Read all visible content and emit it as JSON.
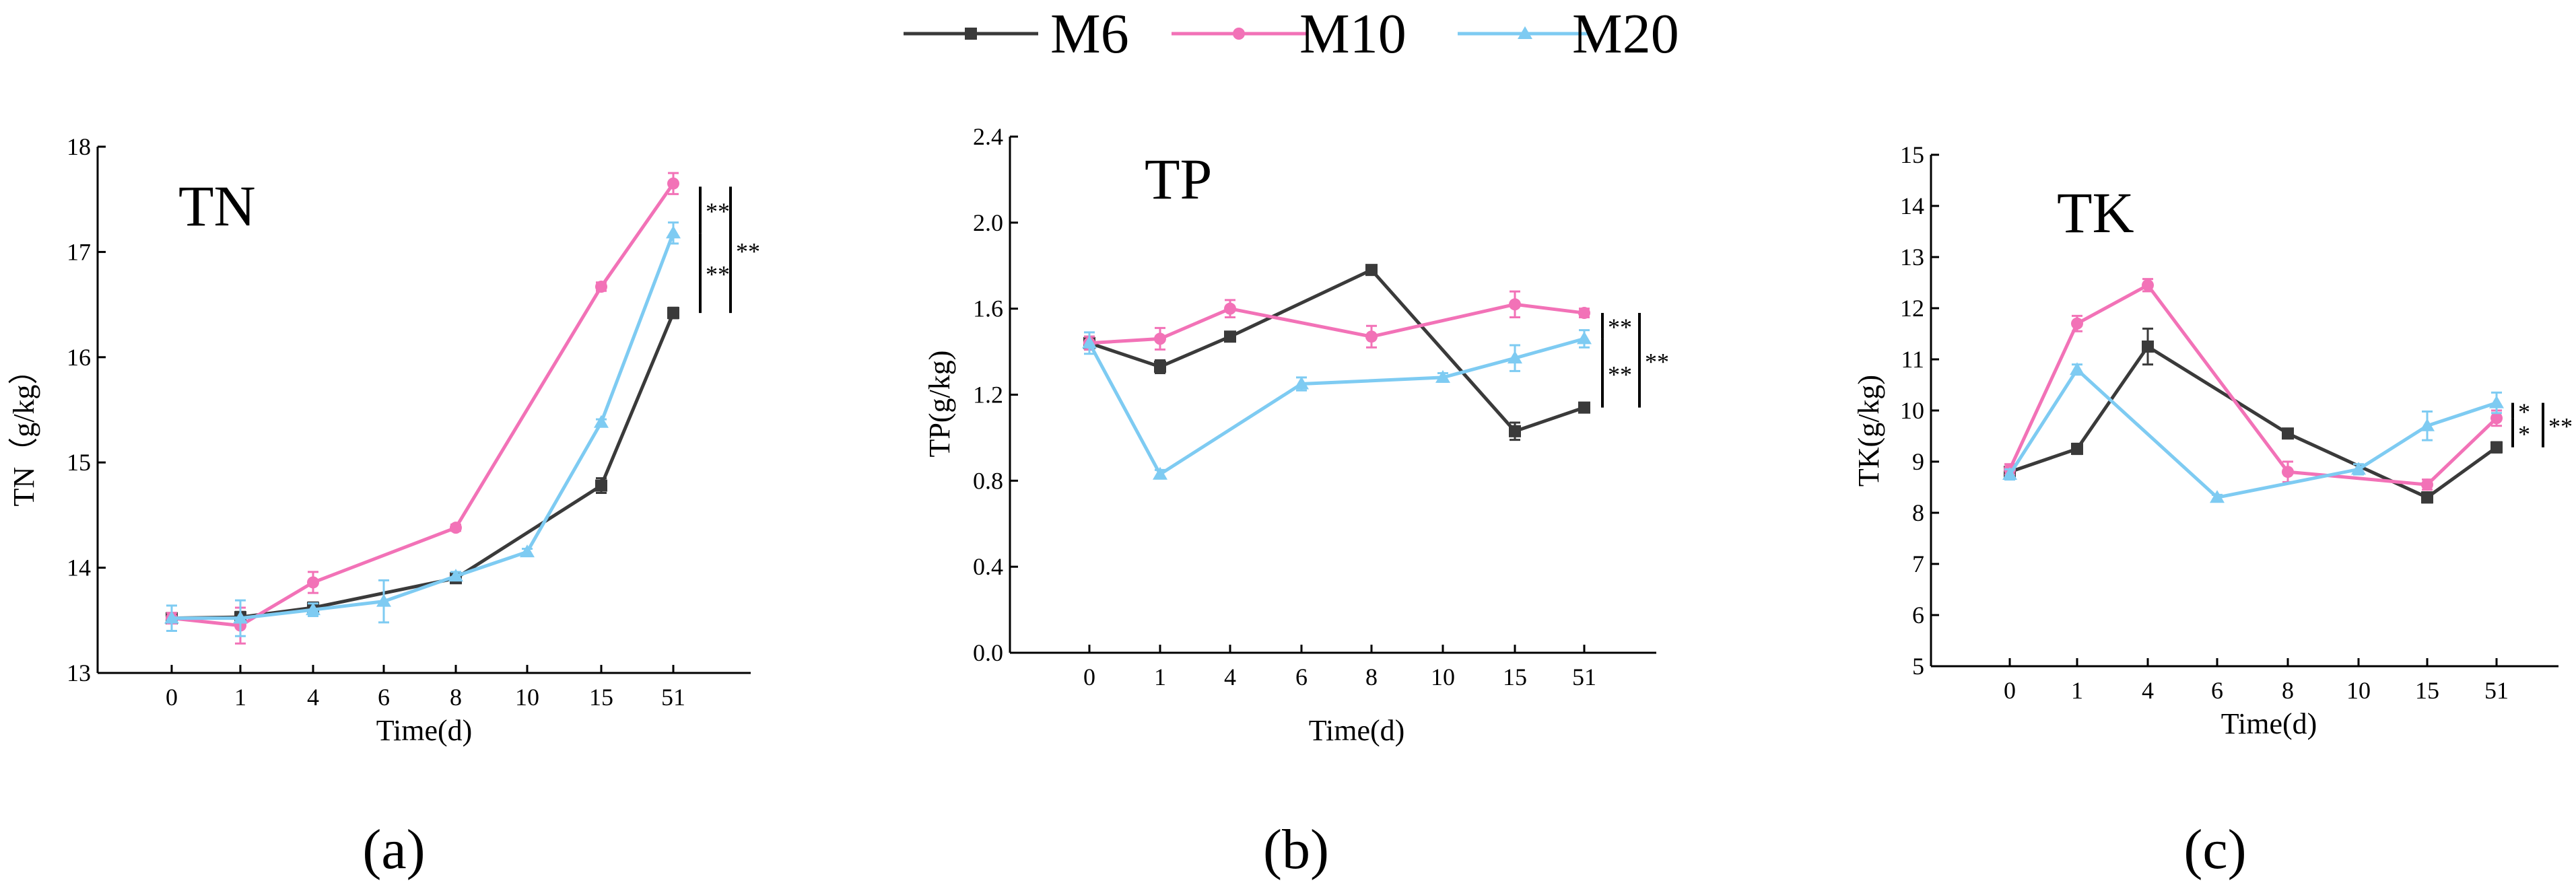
{
  "legend": [
    {
      "name": "M6",
      "color": "#3a3a3a",
      "marker": "square"
    },
    {
      "name": "M10",
      "color": "#f272b7",
      "marker": "circle"
    },
    {
      "name": "M20",
      "color": "#7ecbf2",
      "marker": "triangle"
    }
  ],
  "chart_data": [
    {
      "id": "a",
      "type": "line",
      "title": "TN",
      "panel_label": "(a)",
      "xlabel": "Time(d)",
      "ylabel": "TN（g/kg）",
      "categories": [
        "0",
        "1",
        "4",
        "6",
        "8",
        "10",
        "15",
        "51"
      ],
      "ylim": [
        13,
        18
      ],
      "yticks": [
        13,
        14,
        15,
        16,
        17,
        18
      ],
      "ytick_labels": [
        "13",
        "14",
        "15",
        "16",
        "17",
        "18"
      ],
      "series": [
        {
          "name": "M6",
          "points": [
            [
              0,
              13.52,
              0.05
            ],
            [
              1,
              13.53,
              0.05
            ],
            [
              2,
              13.62,
              0.05
            ],
            [
              4,
              13.9,
              0.04
            ],
            [
              6,
              14.78,
              0.07
            ],
            [
              7,
              16.42,
              0.05
            ]
          ]
        },
        {
          "name": "M10",
          "points": [
            [
              0,
              13.52,
              0.05
            ],
            [
              1,
              13.45,
              0.17
            ],
            [
              2,
              13.86,
              0.1
            ],
            [
              4,
              14.38,
              0.03
            ],
            [
              6,
              16.67,
              0.04
            ],
            [
              7,
              17.65,
              0.1
            ]
          ]
        },
        {
          "name": "M20",
          "points": [
            [
              0,
              13.52,
              0.12
            ],
            [
              1,
              13.52,
              0.17
            ],
            [
              2,
              13.6,
              0.06
            ],
            [
              3,
              13.68,
              0.2
            ],
            [
              4,
              13.92,
              0.04
            ],
            [
              5,
              14.15,
              0.03
            ],
            [
              6,
              15.38,
              0.03
            ],
            [
              7,
              17.18,
              0.1
            ]
          ]
        }
      ],
      "significance": [
        {
          "label": "**",
          "from": 17.62,
          "to": 17.18
        },
        {
          "label": "**",
          "from": 17.18,
          "to": 16.42
        },
        {
          "label": "**",
          "from": 17.62,
          "to": 16.42
        }
      ]
    },
    {
      "id": "b",
      "type": "line",
      "title": "TP",
      "panel_label": "(b)",
      "xlabel": "Time(d)",
      "ylabel": "TP(g/kg)",
      "categories": [
        "0",
        "1",
        "4",
        "6",
        "8",
        "10",
        "15",
        "51"
      ],
      "ylim": [
        0,
        2.4
      ],
      "yticks": [
        0,
        0.4,
        0.8,
        1.2,
        1.6,
        2.0,
        2.4
      ],
      "ytick_labels": [
        "0.0",
        "0.4",
        "0.8",
        "1.2",
        "1.6",
        "2.0",
        "2.4"
      ],
      "series": [
        {
          "name": "M6",
          "points": [
            [
              0,
              1.44,
              0.03
            ],
            [
              1,
              1.33,
              0.03
            ],
            [
              2,
              1.47,
              0.02
            ],
            [
              4,
              1.78,
              0.02
            ],
            [
              6,
              1.03,
              0.04
            ],
            [
              7,
              1.14,
              0.02
            ]
          ]
        },
        {
          "name": "M10",
          "points": [
            [
              0,
              1.44,
              0.03
            ],
            [
              1,
              1.46,
              0.05
            ],
            [
              2,
              1.6,
              0.04
            ],
            [
              4,
              1.47,
              0.05
            ],
            [
              6,
              1.62,
              0.06
            ],
            [
              7,
              1.58,
              0.02
            ]
          ]
        },
        {
          "name": "M20",
          "points": [
            [
              0,
              1.44,
              0.05
            ],
            [
              1,
              0.83,
              0.02
            ],
            [
              3,
              1.25,
              0.03
            ],
            [
              5,
              1.28,
              0.02
            ],
            [
              6,
              1.37,
              0.06
            ],
            [
              7,
              1.46,
              0.04
            ]
          ]
        }
      ],
      "significance": [
        {
          "label": "**",
          "from": 1.58,
          "to": 1.46
        },
        {
          "label": "**",
          "from": 1.46,
          "to": 1.14
        },
        {
          "label": "**",
          "from": 1.58,
          "to": 1.14
        }
      ]
    },
    {
      "id": "c",
      "type": "line",
      "title": "TK",
      "panel_label": "(c)",
      "xlabel": "Time(d)",
      "ylabel": "TK(g/kg)",
      "categories": [
        "0",
        "1",
        "4",
        "6",
        "8",
        "10",
        "15",
        "51"
      ],
      "ylim": [
        5,
        15
      ],
      "yticks": [
        5,
        6,
        7,
        8,
        9,
        10,
        11,
        12,
        13,
        14,
        15
      ],
      "ytick_labels": [
        "5",
        "6",
        "7",
        "8",
        "9",
        "10",
        "11",
        "12",
        "13",
        "14",
        "15"
      ],
      "series": [
        {
          "name": "M6",
          "points": [
            [
              0,
              8.8,
              0.05
            ],
            [
              1,
              9.25,
              0.1
            ],
            [
              2,
              11.25,
              0.35
            ],
            [
              4,
              9.55,
              0.08
            ],
            [
              6,
              8.3,
              0.1
            ],
            [
              7,
              9.28,
              0.1
            ]
          ]
        },
        {
          "name": "M10",
          "points": [
            [
              0,
              8.85,
              0.1
            ],
            [
              1,
              11.7,
              0.15
            ],
            [
              2,
              12.45,
              0.12
            ],
            [
              4,
              8.8,
              0.2
            ],
            [
              6,
              8.55,
              0.1
            ],
            [
              7,
              9.85,
              0.15
            ]
          ]
        },
        {
          "name": "M20",
          "points": [
            [
              0,
              8.75,
              0.1
            ],
            [
              1,
              10.8,
              0.1
            ],
            [
              3,
              8.3,
              0.05
            ],
            [
              5,
              8.85,
              0.1
            ],
            [
              6,
              9.7,
              0.28
            ],
            [
              7,
              10.15,
              0.2
            ]
          ]
        }
      ],
      "significance": [
        {
          "label": "*",
          "from": 10.15,
          "to": 9.85
        },
        {
          "label": "*",
          "from": 9.85,
          "to": 9.28
        },
        {
          "label": "**",
          "from": 10.15,
          "to": 9.28
        }
      ]
    }
  ]
}
